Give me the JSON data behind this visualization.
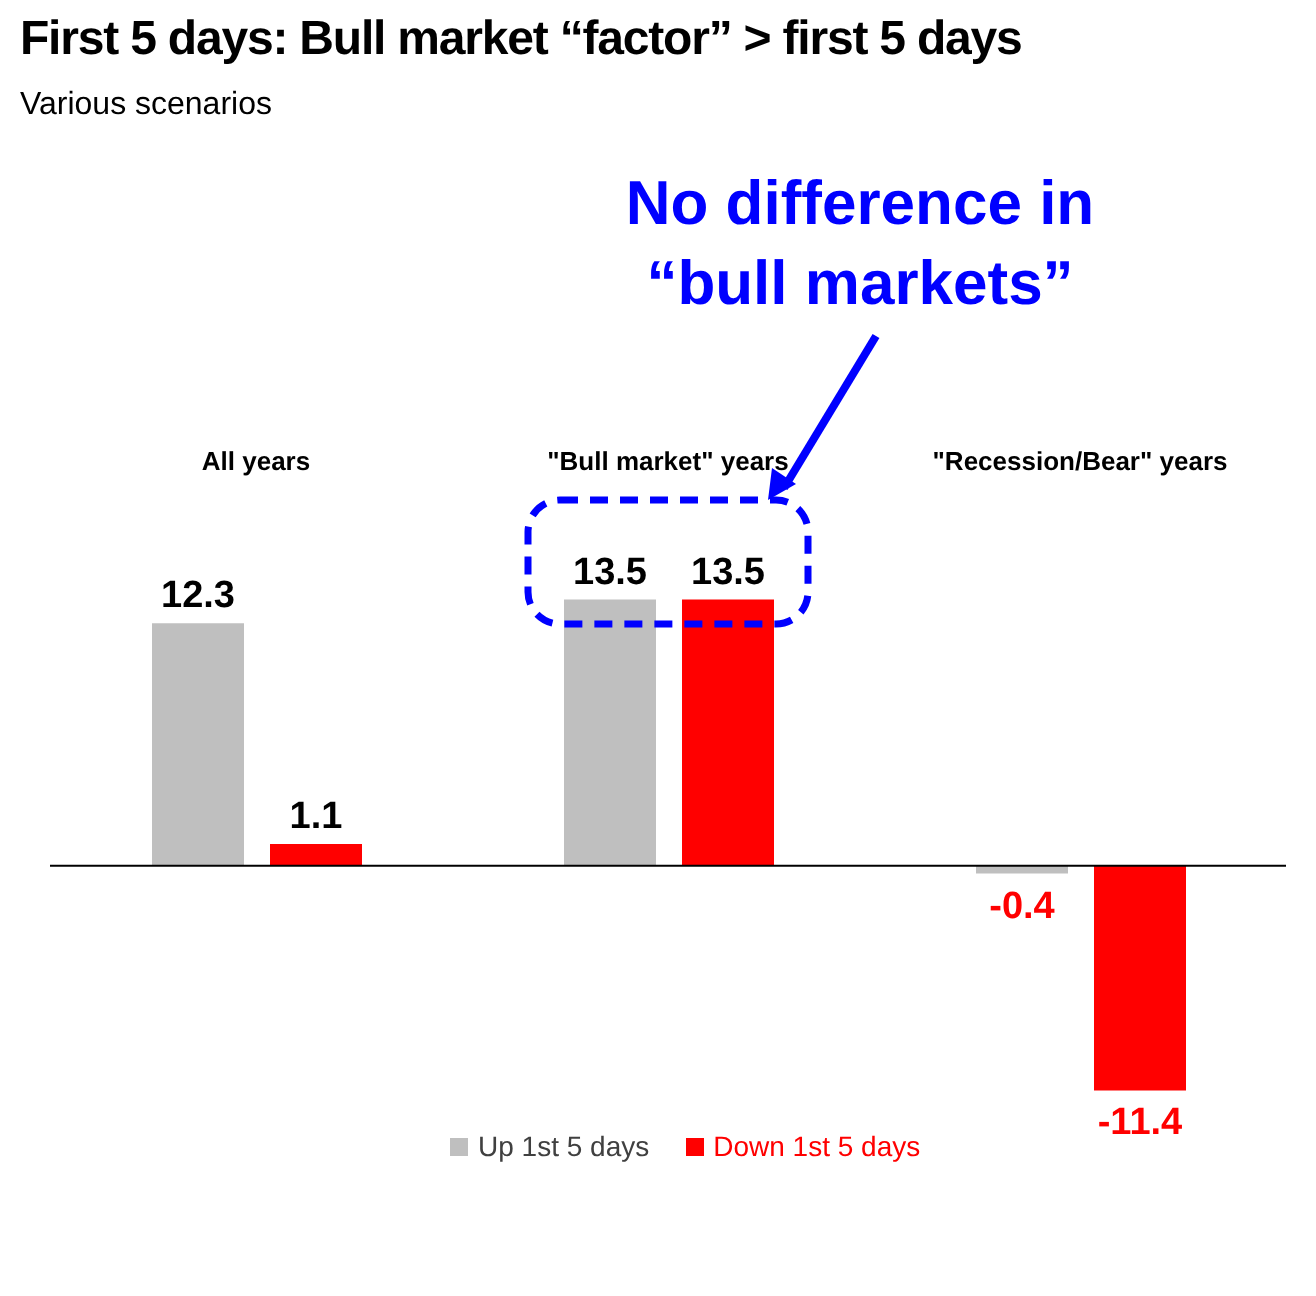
{
  "chart_data": {
    "type": "bar",
    "title": "First 5 days:  Bull market “factor” > first 5 days",
    "subtitle": "Various scenarios",
    "categories": [
      "All years",
      "\"Bull market\" years",
      "\"Recession/Bear\" years"
    ],
    "series": [
      {
        "name": "Up 1st 5 days",
        "color": "#bfbfbf",
        "values": [
          12.3,
          13.5,
          -0.4
        ]
      },
      {
        "name": "Down 1st 5 days",
        "color": "#ff0000",
        "values": [
          1.1,
          13.5,
          -11.4
        ]
      }
    ],
    "data_labels": true,
    "legend": "bottom",
    "annotations": [
      "No difference in “bull markets”"
    ]
  }
}
